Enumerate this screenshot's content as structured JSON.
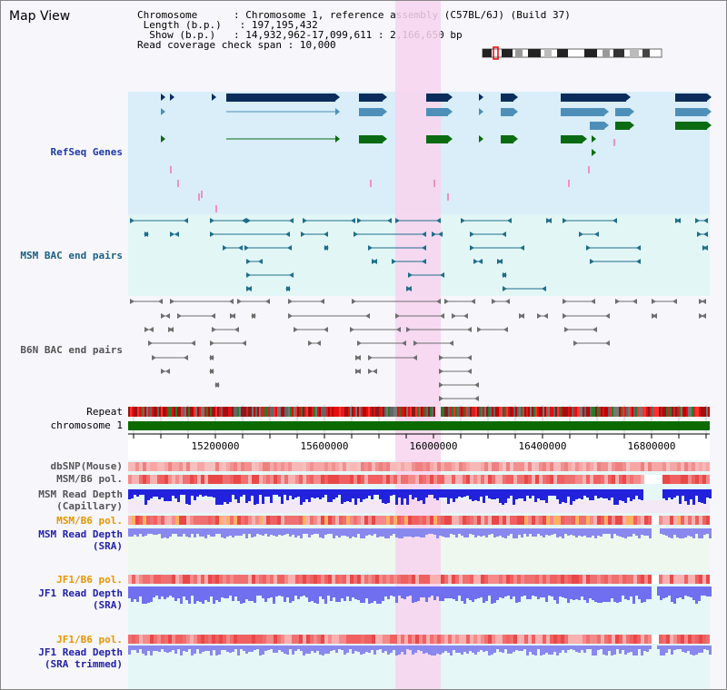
{
  "title": "Map View",
  "info": {
    "chromosome_key": "Chromosome",
    "chromosome_value": "Chromosome 1, reference assembly (C57BL/6J) (Build 37)",
    "length_key": "Length (b.p.)",
    "length_value": "197,195,432",
    "show_key": "Show (b.p.)",
    "show_value": "14,932,962-17,099,611 : 2,166,650 bp",
    "coverage_key": "Read coverage check span",
    "coverage_value": "10,000"
  },
  "tracks": {
    "refseq": "RefSeq Genes",
    "msm_bac": "MSM BAC end pairs",
    "b6n_bac": "B6N BAC end pairs",
    "repeat": "Repeat",
    "chromosome": "chromosome 1",
    "dbsnp": "dbSNP(Mouse)",
    "msm_pol_1": "MSM/B6 pol.",
    "msm_depth_cap_1": "MSM Read Depth",
    "msm_depth_cap_2": "(Capillary)",
    "msm_pol_2": "MSM/B6 pol.",
    "msm_depth_sra_1": "MSM Read Depth",
    "msm_depth_sra_2": "(SRA)",
    "jf1_pol_1": "JF1/B6 pol.",
    "jf1_depth_sra_1": "JF1 Read Depth",
    "jf1_depth_sra_2": "(SRA)",
    "jf1_pol_2": "JF1/B6 pol.",
    "jf1_depth_trim_1": "JF1 Read Depth",
    "jf1_depth_trim_2": "(SRA trimmed)"
  },
  "axis": {
    "ticks": [
      "15200000",
      "15600000",
      "16000000",
      "16400000",
      "16800000"
    ]
  },
  "colors": {
    "highlight": "#f7d4ef",
    "refseq_bg": "#d9eef9",
    "msm_bg": "#e3f6f6",
    "gene_navy": "#0b2d5c",
    "gene_blue": "#4d8fb8",
    "gene_green": "#0b6b12",
    "bac_teal": "#1e6e8a",
    "bac_gray": "#6e6e6e",
    "chromosome_green": "#0b6b00",
    "depth_blue": "#2222dd",
    "depth_lavender": "#8888ee",
    "label_navy": "#1f3aa8",
    "label_teal": "#1a5f80",
    "label_gray": "#555555",
    "label_orange": "#e69500",
    "label_blue": "#2222aa"
  }
}
